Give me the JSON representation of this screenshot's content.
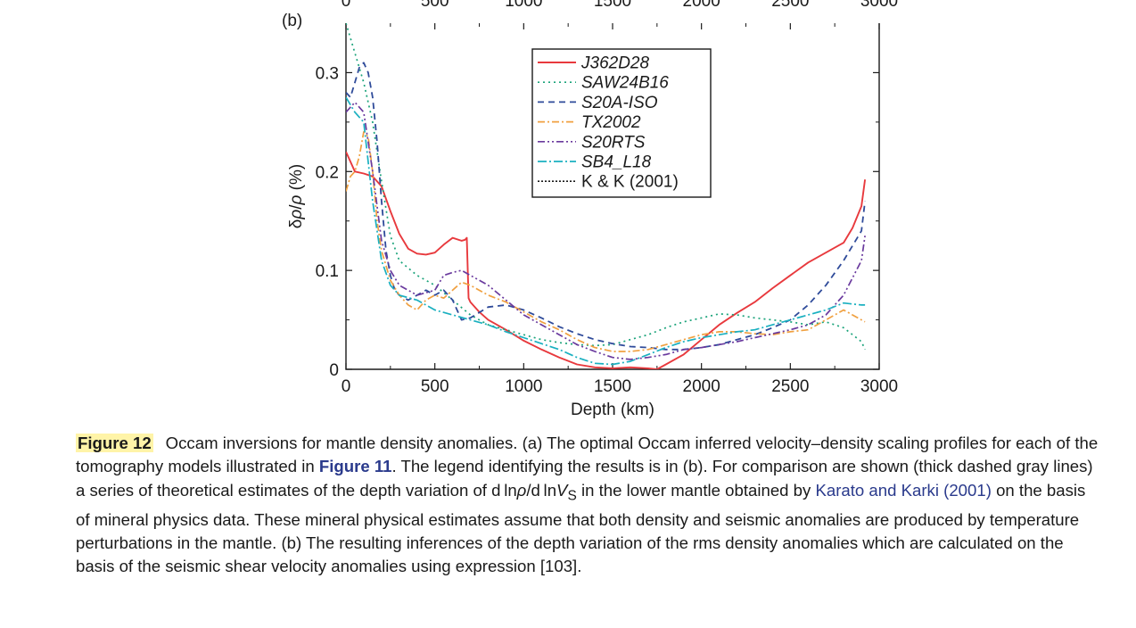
{
  "chart_data": {
    "type": "line",
    "panel_label": "(b)",
    "xlabel": "Depth (km)",
    "ylabel_parts": [
      "δ",
      "ρ",
      "/",
      "ρ",
      " (%)"
    ],
    "xlim": [
      0,
      3000
    ],
    "ylim": [
      0,
      0.35
    ],
    "x_ticks": [
      0,
      500,
      1000,
      1500,
      2000,
      2500,
      3000
    ],
    "x_tick_labels": [
      "0",
      "500",
      "1000",
      "1500",
      "2000",
      "2500",
      "3000"
    ],
    "y_ticks": [
      0,
      0.1,
      0.2,
      0.3
    ],
    "y_tick_labels": [
      "0",
      "0.1",
      "0.2",
      "0.3"
    ],
    "grid": false,
    "legend_position": "top-center",
    "series": [
      {
        "name": "J362D28",
        "color": "#e8393d",
        "dash": "",
        "width": 1.9,
        "italic": true,
        "x": [
          0,
          50,
          100,
          150,
          200,
          250,
          300,
          350,
          400,
          450,
          500,
          550,
          600,
          650,
          670,
          680,
          690,
          700,
          750,
          800,
          900,
          1000,
          1100,
          1200,
          1300,
          1400,
          1500,
          1600,
          1700,
          1750,
          1800,
          1900,
          2000,
          2100,
          2200,
          2300,
          2400,
          2500,
          2600,
          2700,
          2800,
          2850,
          2900,
          2920
        ],
        "y": [
          0.22,
          0.2,
          0.198,
          0.195,
          0.185,
          0.16,
          0.137,
          0.122,
          0.117,
          0.116,
          0.118,
          0.126,
          0.133,
          0.13,
          0.131,
          0.133,
          0.072,
          0.068,
          0.058,
          0.05,
          0.04,
          0.029,
          0.02,
          0.012,
          0.005,
          0.002,
          0.001,
          0.002,
          0.001,
          0.0,
          0.005,
          0.015,
          0.03,
          0.045,
          0.057,
          0.068,
          0.082,
          0.095,
          0.108,
          0.118,
          0.128,
          0.143,
          0.165,
          0.192
        ]
      },
      {
        "name": "SAW24B16",
        "color": "#1aa37a",
        "dash": "2 4",
        "width": 1.7,
        "italic": true,
        "x": [
          0,
          50,
          100,
          150,
          200,
          250,
          300,
          400,
          500,
          600,
          700,
          800,
          900,
          1000,
          1100,
          1200,
          1300,
          1400,
          1500,
          1600,
          1700,
          1800,
          1900,
          2000,
          2100,
          2200,
          2300,
          2400,
          2500,
          2600,
          2700,
          2800,
          2900,
          2920
        ],
        "y": [
          0.35,
          0.32,
          0.29,
          0.25,
          0.19,
          0.135,
          0.11,
          0.095,
          0.085,
          0.07,
          0.055,
          0.045,
          0.04,
          0.035,
          0.03,
          0.027,
          0.025,
          0.024,
          0.025,
          0.03,
          0.035,
          0.042,
          0.048,
          0.052,
          0.056,
          0.055,
          0.052,
          0.05,
          0.048,
          0.045,
          0.048,
          0.042,
          0.028,
          0.02
        ]
      },
      {
        "name": "S20A-ISO",
        "color": "#2f4b9a",
        "dash": "7 5",
        "width": 1.8,
        "italic": true,
        "x": [
          0,
          25,
          50,
          75,
          100,
          125,
          150,
          175,
          200,
          225,
          250,
          275,
          300,
          350,
          400,
          450,
          500,
          550,
          600,
          650,
          700,
          800,
          900,
          1000,
          1100,
          1200,
          1300,
          1400,
          1500,
          1600,
          1700,
          1800,
          1900,
          2000,
          2100,
          2200,
          2300,
          2400,
          2500,
          2600,
          2700,
          2800,
          2900,
          2920
        ],
        "y": [
          0.28,
          0.275,
          0.29,
          0.305,
          0.31,
          0.3,
          0.275,
          0.23,
          0.17,
          0.12,
          0.095,
          0.08,
          0.075,
          0.07,
          0.075,
          0.08,
          0.075,
          0.08,
          0.07,
          0.05,
          0.052,
          0.063,
          0.065,
          0.06,
          0.052,
          0.043,
          0.036,
          0.03,
          0.026,
          0.023,
          0.022,
          0.02,
          0.02,
          0.022,
          0.025,
          0.03,
          0.035,
          0.042,
          0.05,
          0.065,
          0.085,
          0.11,
          0.14,
          0.17
        ]
      },
      {
        "name": "TX2002",
        "color": "#f0a040",
        "dash": "8 3 2 3",
        "width": 1.7,
        "italic": true,
        "x": [
          0,
          25,
          50,
          75,
          100,
          125,
          150,
          175,
          200,
          250,
          300,
          350,
          400,
          450,
          500,
          550,
          600,
          650,
          700,
          800,
          900,
          1000,
          1100,
          1200,
          1300,
          1400,
          1500,
          1600,
          1700,
          1800,
          1900,
          2000,
          2100,
          2200,
          2300,
          2400,
          2500,
          2600,
          2700,
          2800,
          2900,
          2920
        ],
        "y": [
          0.18,
          0.195,
          0.2,
          0.215,
          0.24,
          0.235,
          0.2,
          0.15,
          0.12,
          0.09,
          0.075,
          0.065,
          0.06,
          0.07,
          0.075,
          0.072,
          0.08,
          0.088,
          0.085,
          0.075,
          0.068,
          0.058,
          0.048,
          0.04,
          0.03,
          0.022,
          0.018,
          0.018,
          0.02,
          0.025,
          0.03,
          0.035,
          0.038,
          0.038,
          0.036,
          0.035,
          0.038,
          0.04,
          0.05,
          0.06,
          0.05,
          0.048
        ]
      },
      {
        "name": "S20RTS",
        "color": "#6a3a9e",
        "dash": "8 3 2 3 2 3",
        "width": 1.7,
        "italic": true,
        "x": [
          0,
          50,
          100,
          150,
          200,
          250,
          300,
          400,
          500,
          550,
          600,
          650,
          700,
          750,
          800,
          900,
          1000,
          1100,
          1200,
          1300,
          1400,
          1500,
          1600,
          1700,
          1800,
          1900,
          2000,
          2100,
          2200,
          2300,
          2400,
          2500,
          2600,
          2700,
          2800,
          2900,
          2920
        ],
        "y": [
          0.26,
          0.27,
          0.26,
          0.2,
          0.13,
          0.1,
          0.085,
          0.075,
          0.08,
          0.095,
          0.098,
          0.1,
          0.095,
          0.09,
          0.085,
          0.07,
          0.055,
          0.045,
          0.035,
          0.025,
          0.018,
          0.012,
          0.01,
          0.012,
          0.015,
          0.02,
          0.022,
          0.025,
          0.028,
          0.032,
          0.036,
          0.04,
          0.045,
          0.055,
          0.075,
          0.11,
          0.135
        ]
      },
      {
        "name": "SB4_L18",
        "color": "#1ab0c0",
        "dash": "10 3 2 3",
        "width": 1.7,
        "italic": true,
        "x": [
          0,
          50,
          100,
          150,
          200,
          250,
          300,
          400,
          500,
          600,
          700,
          800,
          900,
          1000,
          1100,
          1200,
          1300,
          1400,
          1500,
          1600,
          1700,
          1800,
          1900,
          2000,
          2100,
          2200,
          2300,
          2400,
          2500,
          2600,
          2700,
          2800,
          2900,
          2920
        ],
        "y": [
          0.275,
          0.26,
          0.25,
          0.17,
          0.11,
          0.085,
          0.075,
          0.07,
          0.06,
          0.055,
          0.05,
          0.045,
          0.038,
          0.032,
          0.026,
          0.02,
          0.012,
          0.006,
          0.005,
          0.008,
          0.015,
          0.022,
          0.028,
          0.032,
          0.035,
          0.038,
          0.04,
          0.045,
          0.05,
          0.055,
          0.06,
          0.067,
          0.065,
          0.065
        ]
      },
      {
        "name": "K & K (2001)",
        "color": "#1a1a1a",
        "dash": "2 2",
        "width": 1.7,
        "italic": false,
        "x": [],
        "y": []
      }
    ]
  },
  "caption": {
    "figure_label": "Figure 12",
    "text_1": "Occam inversions for mantle density anomalies. (a) The optimal Occam inferred velocity–density scaling profiles for each of the tomography models illustrated in ",
    "figure_ref": "Figure 11",
    "text_2": ". The legend identifying the results is in (b). For comparison are shown (thick dashed gray lines) a series of theoretical estimates of the depth variation of d ln",
    "rho": "ρ",
    "slash_dln": "/d ln",
    "v": "V",
    "v_sub": "S",
    "text_3": " in the lower mantle obtained by ",
    "citation": "Karato and Karki (2001)",
    "text_4": " on the basis of mineral physics data. These mineral physical estimates assume that both density and seismic anomalies are produced by temperature perturbations in the mantle. (b) The resulting inferences of the depth variation of the rms density anomalies which are calculated on the basis of the seismic shear velocity anomalies using expression [103]."
  }
}
